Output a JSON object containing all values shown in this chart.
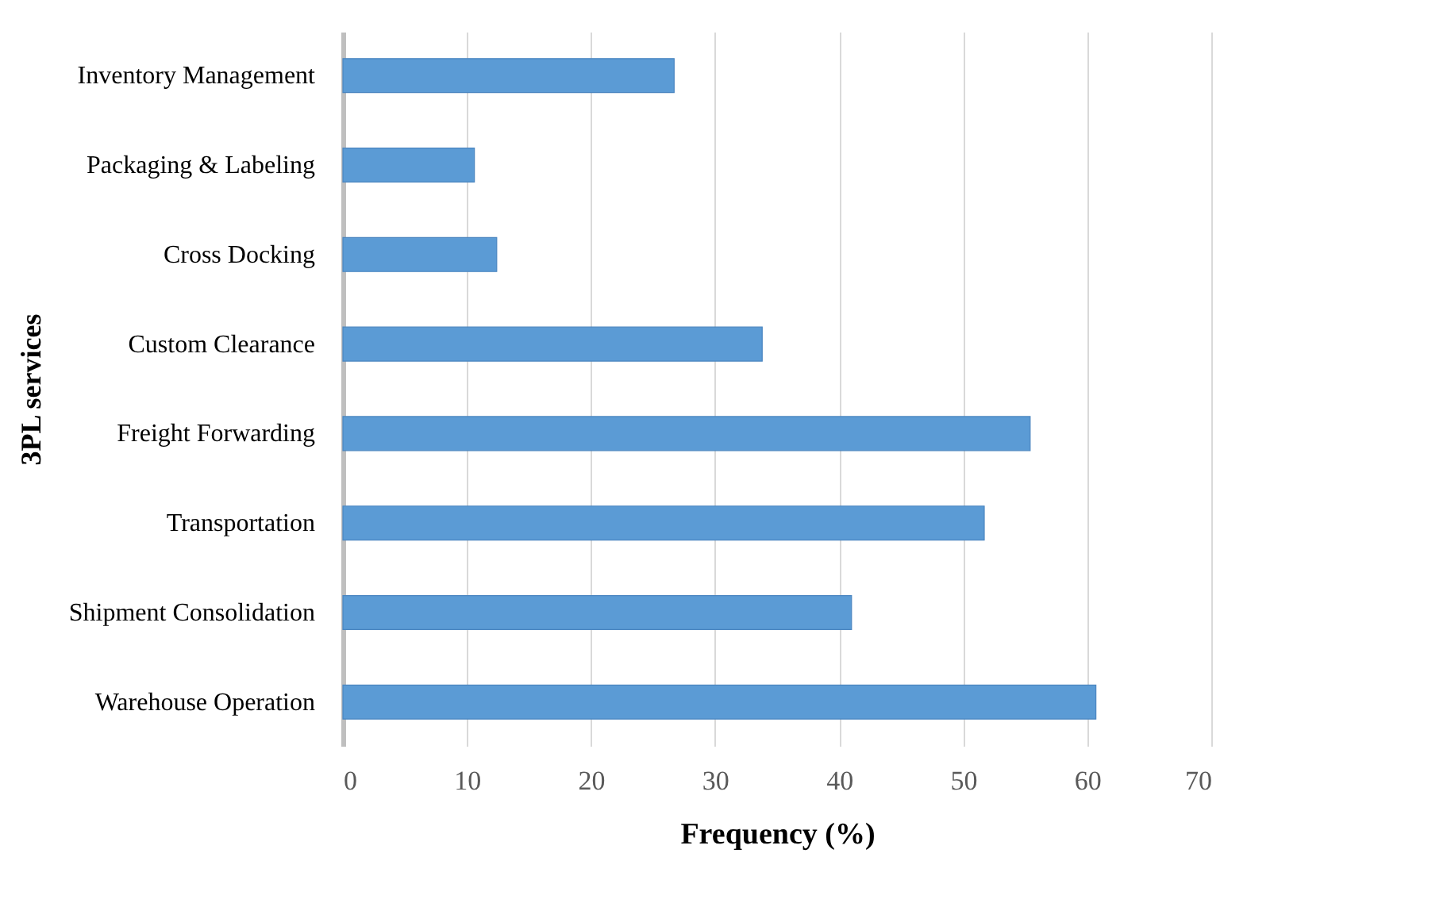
{
  "chart_data": {
    "type": "bar",
    "orientation": "horizontal",
    "xlabel": "Frequency (%)",
    "ylabel": "3PL services",
    "categories": [
      "Inventory Management",
      "Packaging & Labeling",
      "Cross Docking",
      "Custom Clearance",
      "Freight Forwarding",
      "Transportation",
      "Shipment Consolidation",
      "Warehouse Operation"
    ],
    "values": [
      26.7,
      10.6,
      12.4,
      33.8,
      55.4,
      51.7,
      41.0,
      60.7
    ],
    "color": "#5b9bd5",
    "xlim": [
      0,
      70
    ],
    "xticks": [
      0,
      10,
      20,
      30,
      40,
      50,
      60,
      70
    ],
    "grid": "x"
  }
}
